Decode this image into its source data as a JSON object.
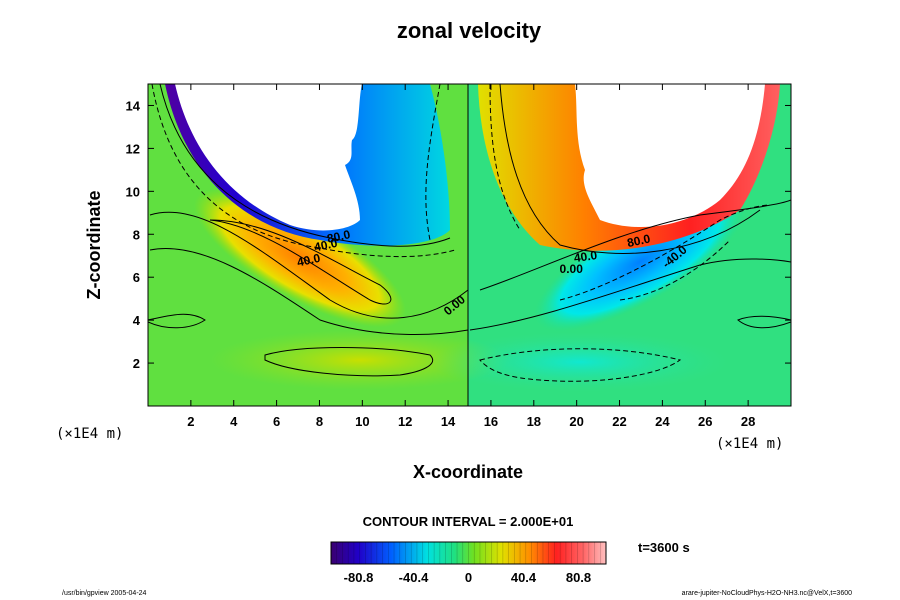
{
  "chart_data": {
    "type": "heatmap",
    "title": "zonal velocity",
    "xlabel": "X-coordinate",
    "ylabel": "Z-coordinate",
    "x_unit": "(×1E4 m)",
    "z_unit": "(×1E4 m)",
    "xlim": [
      0,
      30
    ],
    "ylim": [
      0,
      15
    ],
    "x_ticks": [
      2,
      4,
      6,
      8,
      10,
      12,
      14,
      16,
      18,
      20,
      22,
      24,
      26,
      28
    ],
    "y_ticks": [
      2,
      4,
      6,
      8,
      10,
      12,
      14
    ],
    "contour_interval": "CONTOUR INTERVAL = 2.000E+01",
    "contour_labels": [
      "80.0",
      "40.0",
      "40.0",
      "0.00",
      "0.00",
      "40.0",
      "80.0",
      "-40.0"
    ],
    "colorbar": {
      "ticks": [
        "-80.8",
        "-40.4",
        "0",
        "40.4",
        "80.8"
      ],
      "range": [
        -101,
        101
      ]
    },
    "time_label": "t=3600 s",
    "footer_left": "/usr/bin/gpview 2005-04-24",
    "footer_right": "arare-jupiter-NoCloudPhys-H2O-NH3.nc@VelX,t=3600"
  }
}
